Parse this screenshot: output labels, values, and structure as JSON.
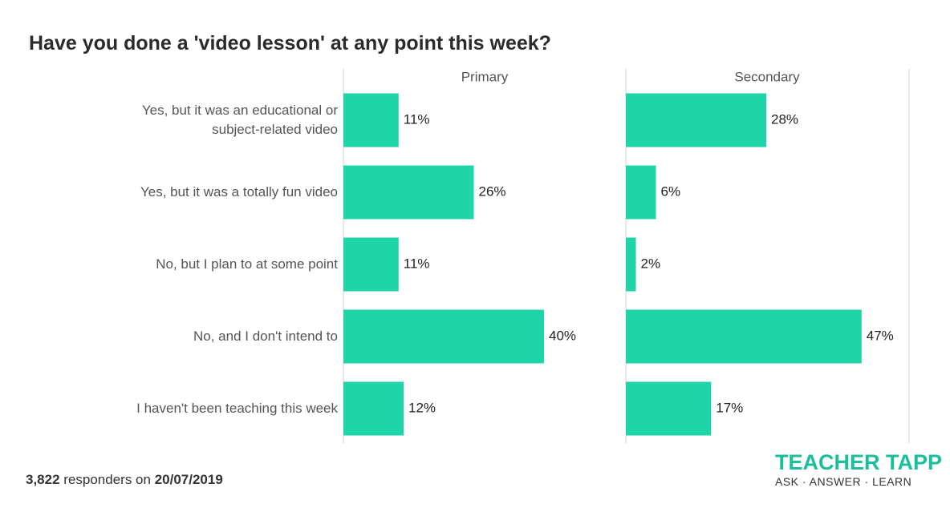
{
  "title": "Have you done a 'video lesson' at any point this week?",
  "footer": {
    "count": "3,822",
    "connector": "responders on",
    "date": "20/07/2019"
  },
  "logo": {
    "brand_left": "TEACHER",
    "brand_right": "TAPP",
    "tagline": "ASK · ANSWER · LEARN"
  },
  "chart_data": {
    "type": "bar",
    "orientation": "horizontal",
    "layout": "facets",
    "categories": [
      "Yes, but it was an educational or subject-related video",
      "Yes, but it was a totally fun video",
      "No, but I plan to at some point",
      "No, and I don't intend to",
      "I haven't been teaching this week"
    ],
    "series": [
      {
        "name": "Primary",
        "color": "#1fd4a6",
        "values": [
          11,
          26,
          11,
          40,
          12
        ],
        "value_labels": [
          "11%",
          "26%",
          "11%",
          "40%",
          "12%"
        ]
      },
      {
        "name": "Secondary",
        "color": "#1fd4a6",
        "values": [
          28,
          6,
          2,
          47,
          17
        ],
        "value_labels": [
          "28%",
          "6%",
          "2%",
          "47%",
          "17%"
        ]
      }
    ],
    "xlim": [
      0,
      56
    ]
  }
}
